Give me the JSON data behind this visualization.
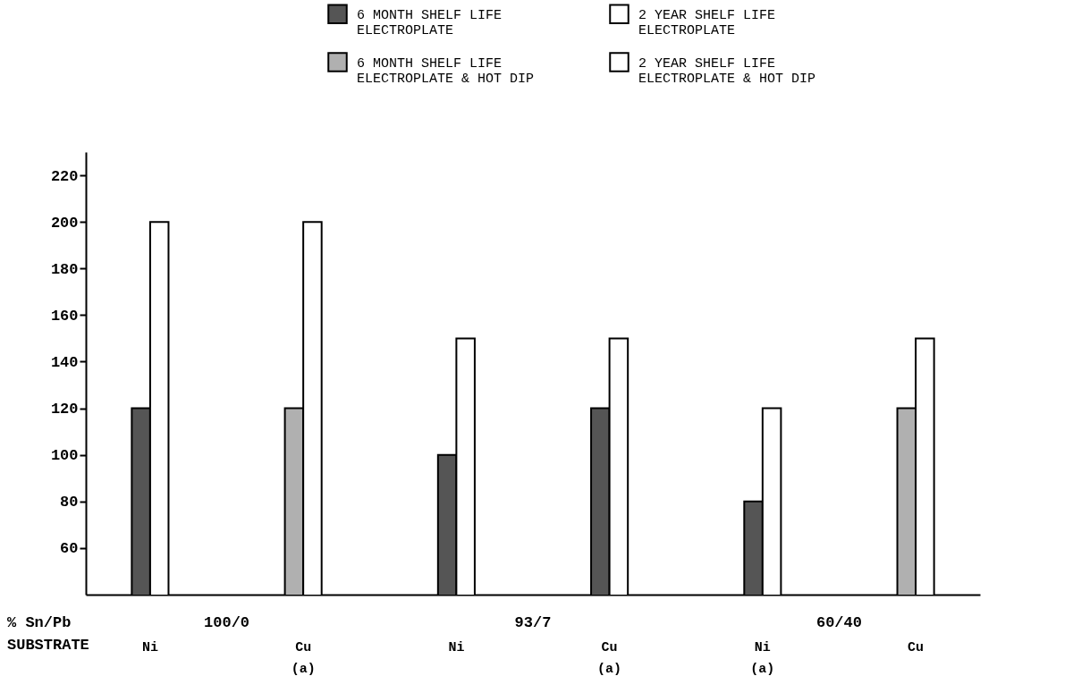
{
  "chart_data": {
    "type": "bar",
    "categories": [
      "Ni",
      "Cu (a)",
      "Ni",
      "Cu (a)",
      "Ni (a)",
      "Cu"
    ],
    "xlabel": "SUBSTRATE",
    "annotations": [
      "% Sn/Pb",
      "100/0",
      "93/7",
      "60/40"
    ],
    "series": [
      {
        "name": "6 MONTH SHELF LIFE ELECTROPLATE",
        "color": "#555555",
        "values": [
          120,
          null,
          100,
          120,
          80,
          null
        ]
      },
      {
        "name": "6 MONTH SHELF LIFE ELECTROPLATE & HOT DIP",
        "color": "#b0b0b0",
        "values": [
          null,
          120,
          null,
          null,
          null,
          120
        ]
      },
      {
        "name": "2 YEAR SHELF LIFE ELECTROPLATE",
        "color": "#ffffff",
        "values": [
          200,
          null,
          150,
          null,
          120,
          null
        ]
      },
      {
        "name": "2 YEAR SHELF LIFE ELECTROPLATE & HOT DIP",
        "color": "#ffffff",
        "values": [
          null,
          200,
          null,
          150,
          null,
          150
        ]
      }
    ],
    "ylim": [
      40,
      230
    ],
    "yticks": [
      60,
      80,
      100,
      120,
      140,
      160,
      180,
      200,
      220
    ],
    "grid": false,
    "legend": "top right"
  }
}
